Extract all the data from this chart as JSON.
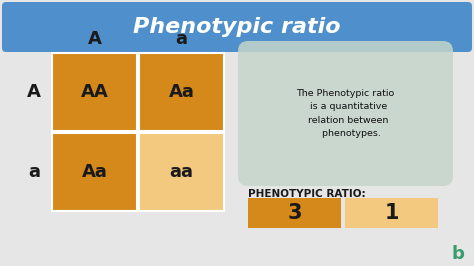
{
  "title": "Phenotypic ratio",
  "title_bg_color": "#4f8fcb",
  "title_text_color": "#ffffff",
  "bg_color": "#e6e6e6",
  "orange_dark": "#d4891a",
  "orange_light": "#f2c97e",
  "col_headers": [
    "A",
    "a"
  ],
  "row_headers": [
    "A",
    "a"
  ],
  "cell_labels": [
    [
      "AA",
      "Aa"
    ],
    [
      "Aa",
      "aa"
    ]
  ],
  "cell_colors": [
    [
      "#d4891a",
      "#d4891a"
    ],
    [
      "#d4891a",
      "#f2c97e"
    ]
  ],
  "annotation_text": "The Phenotypic ratio\n  is a quantitative\n  relation between\n    phenotypes.",
  "annotation_bg": "#c5d5cc",
  "ratio_label": "PHENOTYPIC RATIO:",
  "ratio_values": [
    "3",
    "1"
  ],
  "ratio_colors": [
    "#d4891a",
    "#f2c97e"
  ],
  "cell_text_color": "#1a1a1a",
  "header_text_color": "#1a1a1a",
  "ratio_text_color": "#1a1a1a",
  "title_fontsize": 16,
  "header_fontsize": 13,
  "cell_fontsize": 13,
  "ratio_label_fontsize": 7.5,
  "ratio_val_fontsize": 15
}
